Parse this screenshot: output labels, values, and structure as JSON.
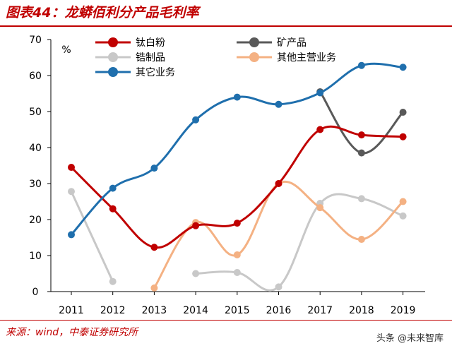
{
  "header": {
    "title": "图表44：龙蟒佰利分产品毛利率"
  },
  "footer": {
    "source": "来源：wind，中泰证券研究所",
    "watermark": "头条 @未来智库"
  },
  "chart_data": {
    "type": "line",
    "title": "图表44：龙蟒佰利分产品毛利率",
    "unit_label": "%",
    "x": [
      "2011",
      "2012",
      "2013",
      "2014",
      "2015",
      "2016",
      "2017",
      "2018",
      "2019"
    ],
    "ylim": [
      0,
      70
    ],
    "yticks": [
      0,
      10,
      20,
      30,
      40,
      50,
      60,
      70
    ],
    "grid": false,
    "legend_position": "top",
    "series": [
      {
        "name": "钛白粉",
        "color": "#c00000",
        "values": [
          34.5,
          23.0,
          12.3,
          18.3,
          19.0,
          30.0,
          45.0,
          43.5,
          43.0
        ]
      },
      {
        "name": "矿产品",
        "color": "#595959",
        "values": [
          null,
          null,
          null,
          null,
          null,
          null,
          55.5,
          38.5,
          49.8
        ]
      },
      {
        "name": "锆制品",
        "color": "#c8c8c8",
        "values": [
          27.8,
          2.8,
          null,
          5.0,
          5.3,
          1.3,
          24.5,
          25.8,
          21.0
        ]
      },
      {
        "name": "其他主营业务",
        "color": "#f4b183",
        "values": [
          null,
          null,
          1.0,
          19.2,
          10.2,
          30.0,
          23.3,
          14.5,
          25.0
        ]
      },
      {
        "name": "其它业务",
        "color": "#1f6fad",
        "values": [
          15.8,
          28.7,
          34.3,
          47.7,
          54.0,
          52.0,
          55.2,
          62.8,
          62.3
        ]
      }
    ]
  }
}
